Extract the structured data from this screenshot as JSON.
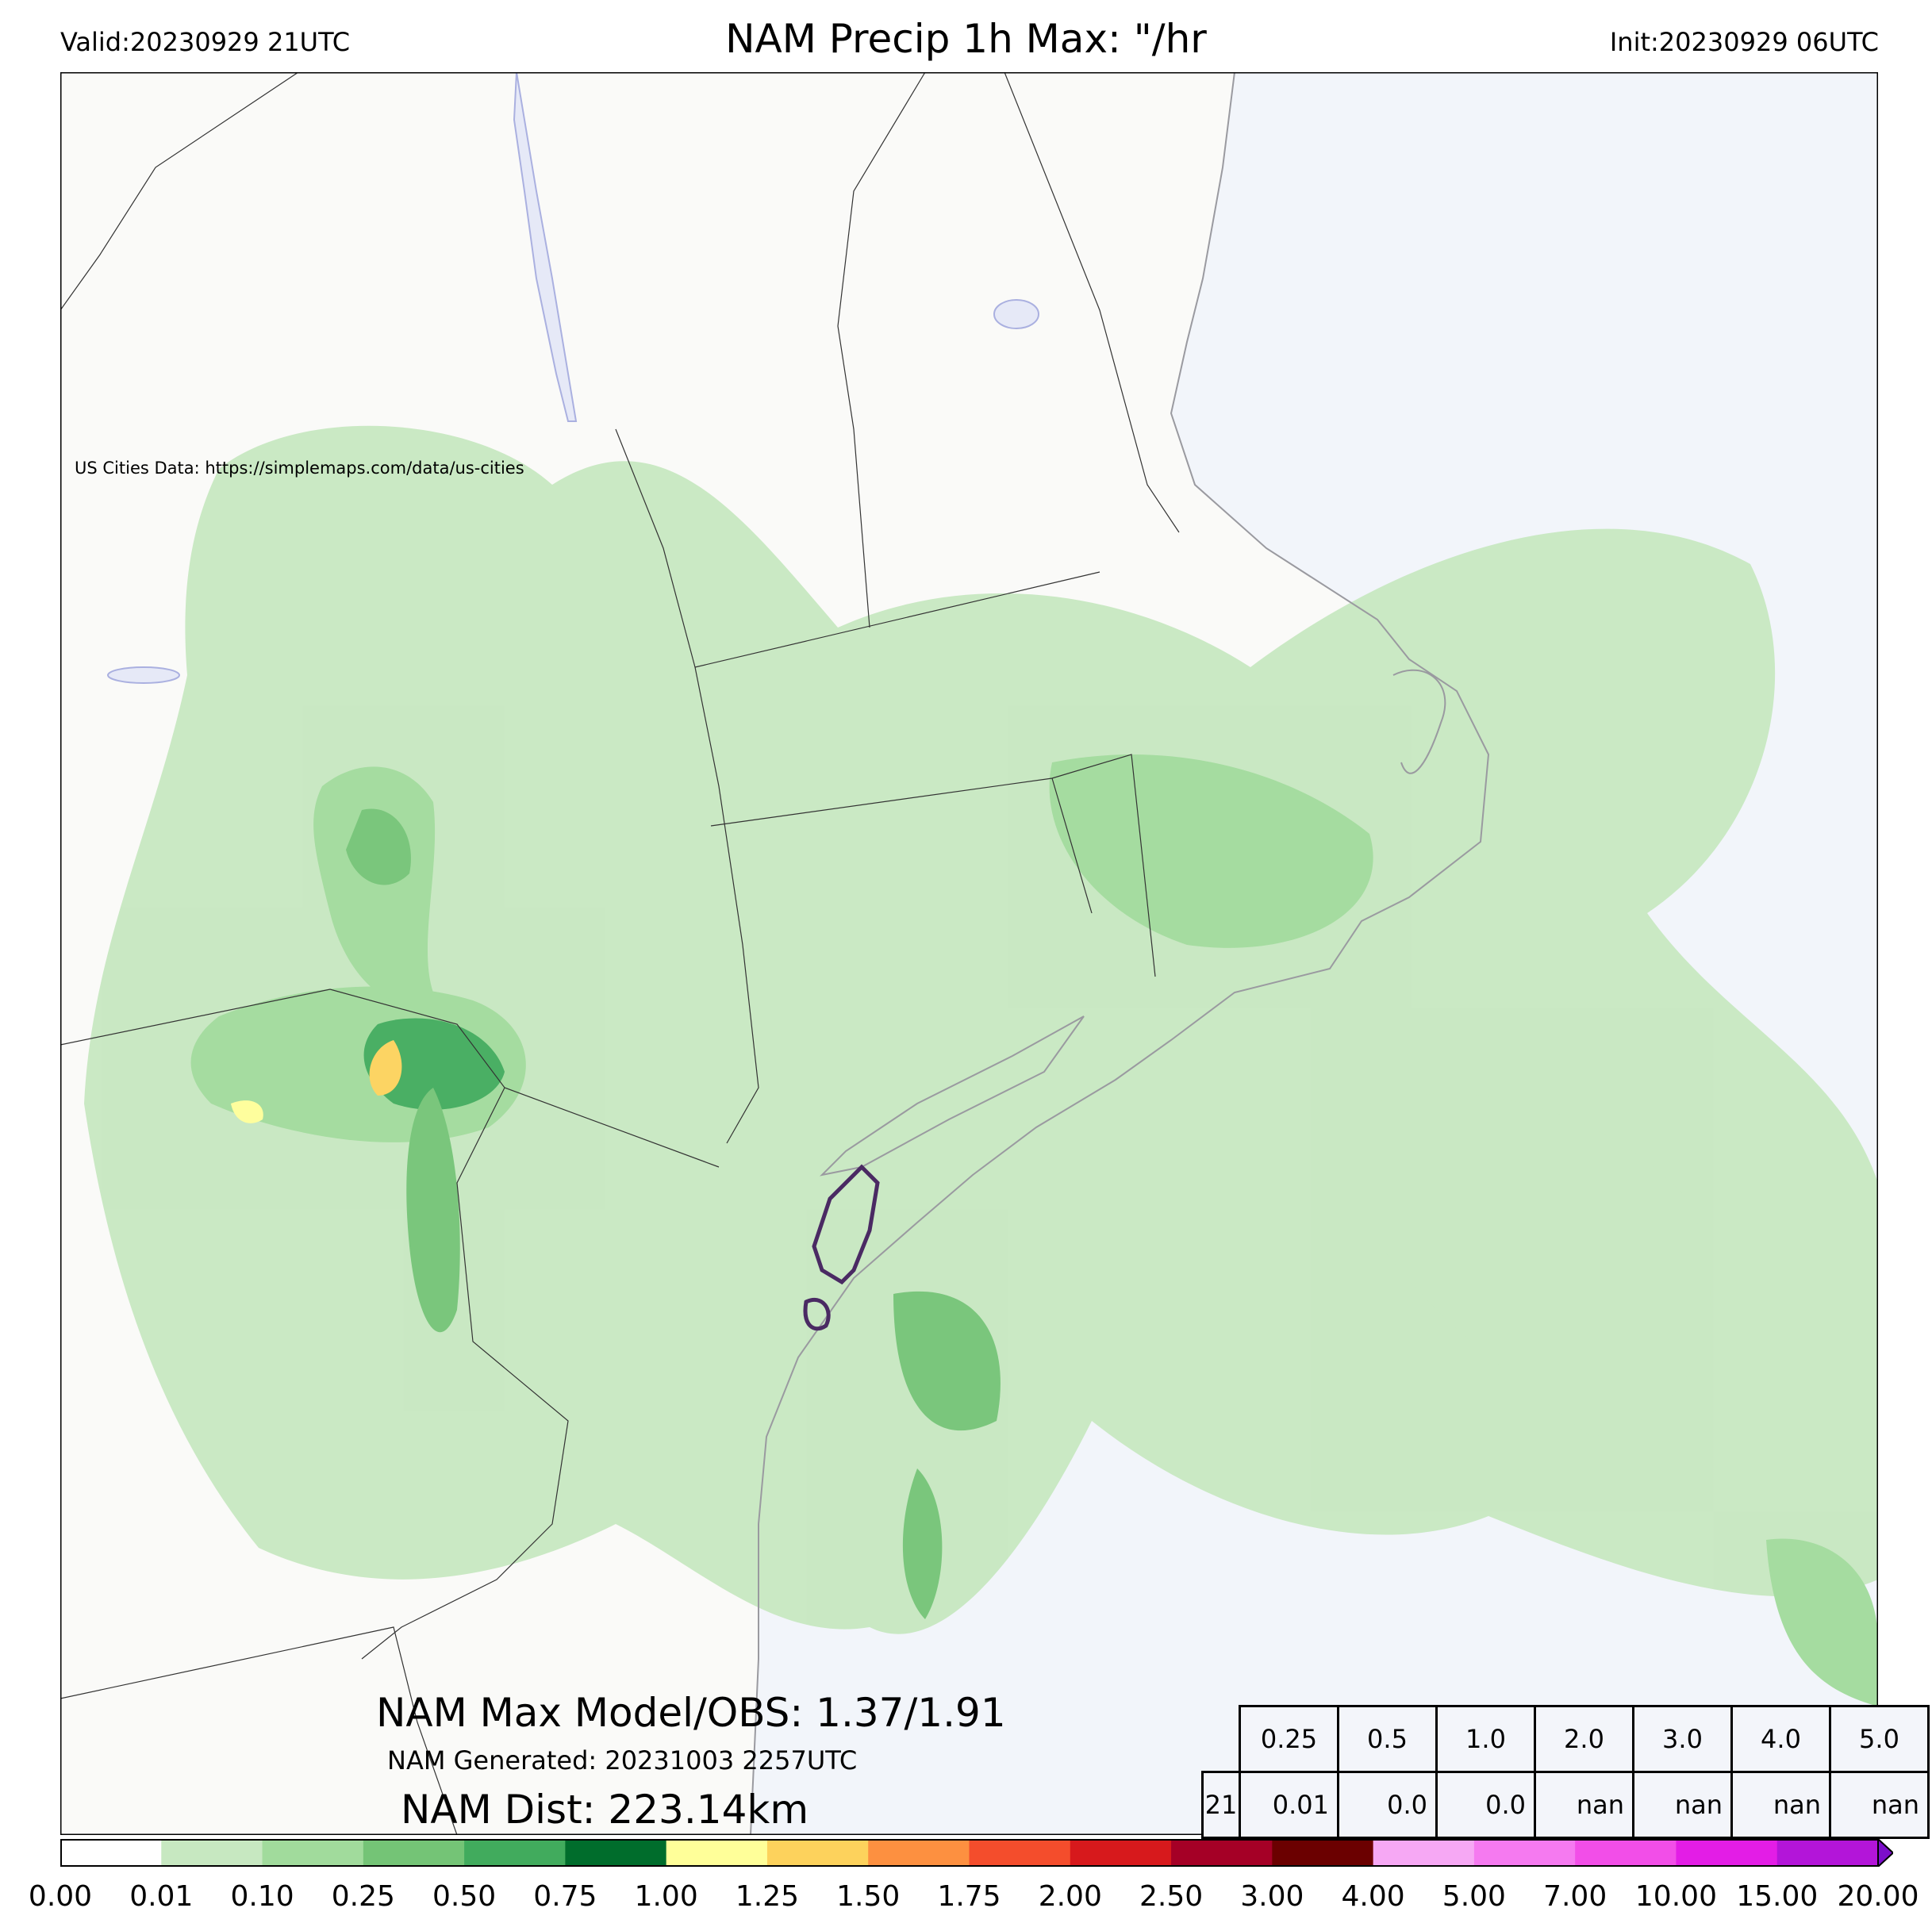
{
  "header": {
    "valid": "Valid:20230929 21UTC",
    "title": "NAM Precip 1h Max: \"/hr",
    "init": "Init:20230929 06UTC"
  },
  "map": {
    "credit": "US Cities Data: https://simplemaps.com/data/us-cities",
    "colors": {
      "land": "#fafaf8",
      "water": "#f2f5fa",
      "border": "#333333",
      "coast": "#9a9aa0"
    }
  },
  "summary": {
    "max_line": "NAM Max Model/OBS: 1.37/1.91",
    "generated": "NAM Generated: 20231003 2257UTC",
    "distance": "NAM Dist: 223.14km"
  },
  "stats_table": {
    "thresholds": [
      "0.25",
      "0.5",
      "1.0",
      "2.0",
      "3.0",
      "4.0",
      "5.0"
    ],
    "hour": "21",
    "values": [
      "0.01",
      "0.0",
      "0.0",
      "nan",
      "nan",
      "nan",
      "nan"
    ]
  },
  "colorbar": {
    "ticks": [
      "0.00",
      "0.01",
      "0.10",
      "0.25",
      "0.50",
      "0.75",
      "1.00",
      "1.25",
      "1.50",
      "1.75",
      "2.00",
      "2.50",
      "3.00",
      "4.00",
      "5.00",
      "7.00",
      "10.00",
      "15.00",
      "20.00"
    ],
    "colors": [
      "#ffffff",
      "#c7e8c1",
      "#a1db9c",
      "#74c476",
      "#41ab5d",
      "#006d2c",
      "#ffff99",
      "#fdd25c",
      "#fd9040",
      "#f44d2c",
      "#d7191c",
      "#a50026",
      "#6b0000",
      "#f6a8f4",
      "#f57af0",
      "#f24ee8",
      "#e31de6",
      "#b315d9",
      "#7c0ecb"
    ]
  }
}
